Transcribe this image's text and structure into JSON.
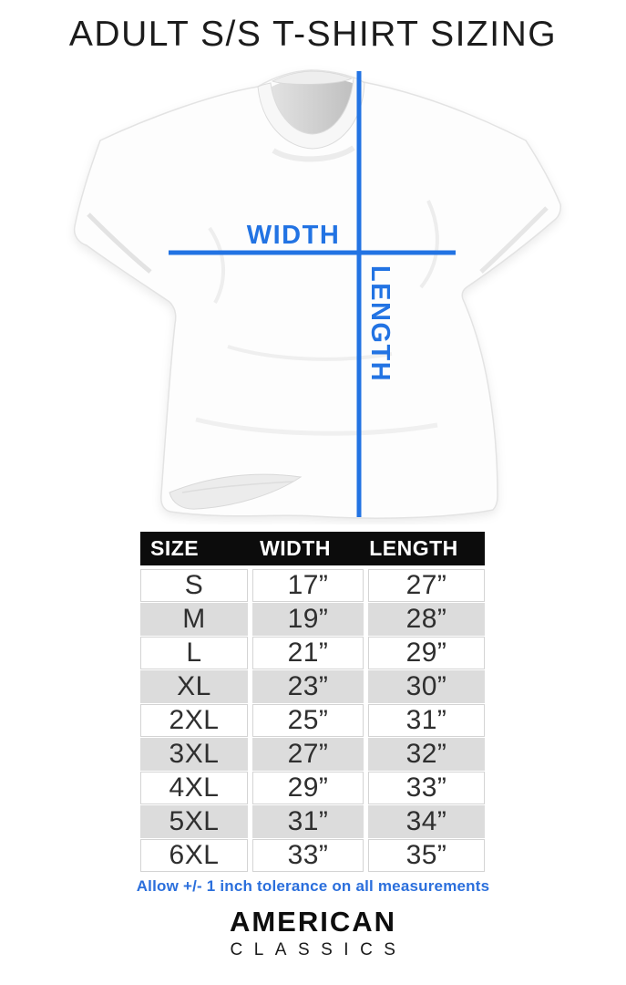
{
  "page": {
    "title": "ADULT S/S T-SHIRT SIZING"
  },
  "diagram": {
    "width_label": "WIDTH",
    "length_label": "LENGTH",
    "illustration": "white-short-sleeve-tshirt-photo"
  },
  "size_table": {
    "columns": [
      "SIZE",
      "WIDTH",
      "LENGTH"
    ],
    "rows": [
      {
        "size": "S",
        "width": "17”",
        "length": "27”"
      },
      {
        "size": "M",
        "width": "19”",
        "length": "28”"
      },
      {
        "size": "L",
        "width": "21”",
        "length": "29”"
      },
      {
        "size": "XL",
        "width": "23”",
        "length": "30”"
      },
      {
        "size": "2XL",
        "width": "25”",
        "length": "31”"
      },
      {
        "size": "3XL",
        "width": "27”",
        "length": "32”"
      },
      {
        "size": "4XL",
        "width": "29”",
        "length": "33”"
      },
      {
        "size": "5XL",
        "width": "31”",
        "length": "34”"
      },
      {
        "size": "6XL",
        "width": "33”",
        "length": "35”"
      }
    ]
  },
  "note": "Allow +/- 1 inch tolerance on all measurements",
  "brand": {
    "line1": "AMERICAN",
    "line2": "CLASSICS"
  },
  "colors": {
    "accent_blue": "#2273E3",
    "note_blue": "#2B6FDC",
    "header_black": "#0c0c0c",
    "row_gray": "#dcdcdc",
    "row_white": "#ffffff"
  }
}
